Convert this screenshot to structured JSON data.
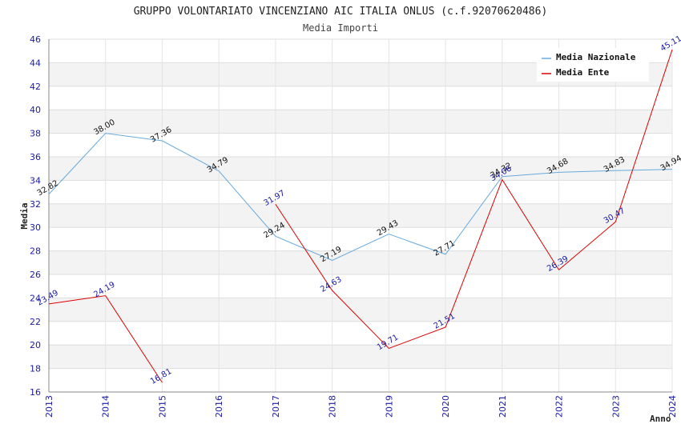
{
  "chart_data": {
    "type": "line",
    "title": "GRUPPO VOLONTARIATO VINCENZIANO AIC ITALIA ONLUS (c.f.92070620486)",
    "subtitle": "Media Importi",
    "xlabel": "Anno",
    "ylabel": "Media",
    "ylim": [
      16,
      46
    ],
    "yticks": [
      16,
      18,
      20,
      22,
      24,
      26,
      28,
      30,
      32,
      34,
      36,
      38,
      40,
      42,
      44,
      46
    ],
    "categories": [
      "2013",
      "2014",
      "2015",
      "2016",
      "2017",
      "2018",
      "2019",
      "2020",
      "2021",
      "2022",
      "2023",
      "2024"
    ],
    "grid": true,
    "legend_position": "top-right",
    "series": [
      {
        "name": "Media Nazionale",
        "color": "#66aadd",
        "values": [
          32.82,
          38.0,
          37.36,
          34.79,
          29.24,
          27.19,
          29.43,
          27.71,
          34.32,
          34.68,
          34.83,
          34.94
        ],
        "labels": [
          "32.82",
          "38.00",
          "37.36",
          "34.79",
          "29.24",
          "27.19",
          "29.43",
          "27.71",
          "34.32",
          "34.68",
          "34.83",
          "34.94"
        ]
      },
      {
        "name": "Media Ente",
        "color": "#dd0000",
        "values": [
          23.49,
          24.19,
          16.81,
          null,
          31.97,
          24.63,
          19.71,
          21.51,
          34.06,
          26.39,
          30.47,
          45.11
        ],
        "labels": [
          "23.49",
          "24.19",
          "16.81",
          "",
          "31.97",
          "24.63",
          "19.71",
          "21.51",
          "34.06",
          "26.39",
          "30.47",
          "45.11"
        ]
      }
    ]
  }
}
